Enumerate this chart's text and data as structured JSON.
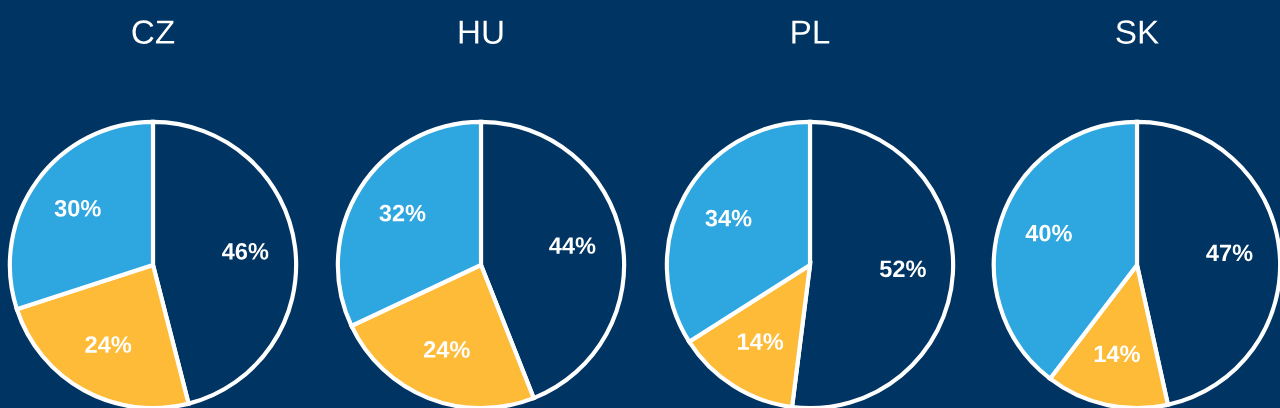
{
  "chart_data": [
    {
      "type": "pie",
      "title": "CZ",
      "categories": [
        null,
        null,
        null
      ],
      "values": [
        46,
        24,
        30
      ],
      "colors": [
        "#003462",
        "#fdbb38",
        "#2ea6df"
      ],
      "value_labels": [
        "46%",
        "24%",
        "30%"
      ]
    },
    {
      "type": "pie",
      "title": "HU",
      "categories": [
        null,
        null,
        null
      ],
      "values": [
        44,
        24,
        32
      ],
      "colors": [
        "#003462",
        "#fdbb38",
        "#2ea6df"
      ],
      "value_labels": [
        "44%",
        "24%",
        "32%"
      ]
    },
    {
      "type": "pie",
      "title": "PL",
      "categories": [
        null,
        null,
        null
      ],
      "values": [
        52,
        14,
        34
      ],
      "colors": [
        "#003462",
        "#fdbb38",
        "#2ea6df"
      ],
      "value_labels": [
        "52%",
        "14%",
        "34%"
      ]
    },
    {
      "type": "pie",
      "title": "SK",
      "categories": [
        null,
        null,
        null
      ],
      "values": [
        47,
        14,
        40
      ],
      "colors": [
        "#003462",
        "#fdbb38",
        "#2ea6df"
      ],
      "value_labels": [
        "47%",
        "14%",
        "40%"
      ]
    }
  ]
}
